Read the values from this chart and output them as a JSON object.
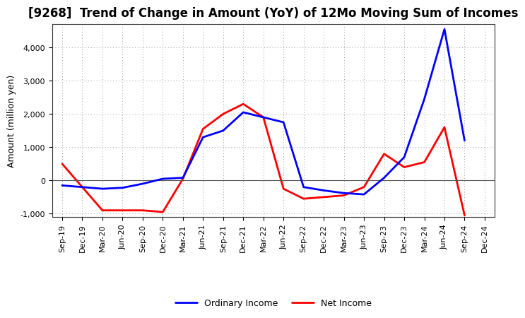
{
  "title": "[9268]  Trend of Change in Amount (YoY) of 12Mo Moving Sum of Incomes",
  "ylabel": "Amount (million yen)",
  "x_labels": [
    "Sep-19",
    "Dec-19",
    "Mar-20",
    "Jun-20",
    "Sep-20",
    "Dec-20",
    "Mar-21",
    "Jun-21",
    "Sep-21",
    "Dec-21",
    "Mar-22",
    "Jun-22",
    "Sep-22",
    "Dec-22",
    "Mar-23",
    "Jun-23",
    "Sep-23",
    "Dec-23",
    "Mar-24",
    "Jun-24",
    "Sep-24",
    "Dec-24"
  ],
  "ordinary_income": [
    -150,
    -200,
    -250,
    -220,
    -100,
    50,
    80,
    1300,
    1500,
    2050,
    1900,
    1750,
    -200,
    -300,
    -380,
    -420,
    80,
    700,
    2450,
    4550,
    1200,
    null
  ],
  "net_income": [
    500,
    null,
    -900,
    -900,
    -900,
    -950,
    50,
    1550,
    2000,
    2300,
    1900,
    -250,
    -550,
    -500,
    -450,
    -200,
    800,
    400,
    550,
    1600,
    -1050,
    null
  ],
  "ordinary_income_color": "#0000ff",
  "net_income_color": "#ff0000",
  "ylim": [
    -1100,
    4700
  ],
  "yticks": [
    -1000,
    0,
    1000,
    2000,
    3000,
    4000
  ],
  "background_color": "#ffffff",
  "grid_color": "#999999",
  "legend_labels": [
    "Ordinary Income",
    "Net Income"
  ],
  "title_fontsize": 12,
  "ylabel_fontsize": 9,
  "tick_fontsize": 8
}
